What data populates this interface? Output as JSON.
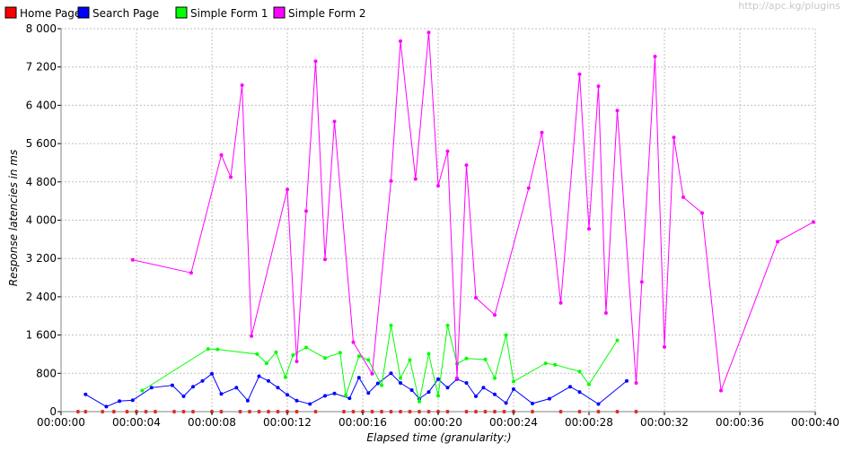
{
  "watermark": "http://apc.kg/plugins",
  "chart_data": {
    "type": "line",
    "title": "",
    "xlabel": "Elapsed time (granularity:)",
    "ylabel": "Response latencies in ms",
    "xlim": [
      0,
      40
    ],
    "ylim": [
      0,
      8000
    ],
    "x_ticks": [
      "00:00:00",
      "00:00:04",
      "00:00:08",
      "00:00:12",
      "00:00:16",
      "00:00:20",
      "00:00:24",
      "00:00:28",
      "00:00:32",
      "00:00:36",
      "00:00:40"
    ],
    "y_ticks": [
      "0",
      "800",
      "1 600",
      "2 400",
      "3 200",
      "4 000",
      "4 800",
      "5 600",
      "6 400",
      "7 200",
      "8 000"
    ],
    "grid": true,
    "legend_position": "top-left",
    "series": [
      {
        "name": "Home Page",
        "color": "#ff0000",
        "points": [
          [
            0.9,
            0
          ],
          [
            1.3,
            0
          ],
          [
            2.2,
            0
          ],
          [
            2.8,
            0
          ],
          [
            3.5,
            0
          ],
          [
            4.0,
            0
          ],
          [
            4.5,
            0
          ],
          [
            5.0,
            0
          ],
          [
            6.0,
            0
          ],
          [
            6.5,
            0
          ],
          [
            7.0,
            0
          ],
          [
            8.0,
            0
          ],
          [
            8.5,
            0
          ],
          [
            9.5,
            0
          ],
          [
            10.0,
            0
          ],
          [
            10.5,
            0
          ],
          [
            11.0,
            0
          ],
          [
            11.5,
            0
          ],
          [
            12.0,
            0
          ],
          [
            12.5,
            0
          ],
          [
            13.5,
            0
          ],
          [
            15.0,
            0
          ],
          [
            15.5,
            0
          ],
          [
            16.0,
            0
          ],
          [
            16.5,
            0
          ],
          [
            17.0,
            0
          ],
          [
            17.5,
            0
          ],
          [
            18.0,
            0
          ],
          [
            18.5,
            0
          ],
          [
            19.0,
            0
          ],
          [
            19.5,
            0
          ],
          [
            20.0,
            0
          ],
          [
            20.5,
            0
          ],
          [
            21.5,
            0
          ],
          [
            22.0,
            0
          ],
          [
            22.5,
            0
          ],
          [
            23.0,
            0
          ],
          [
            23.5,
            0
          ],
          [
            24.0,
            0
          ],
          [
            25.0,
            0
          ],
          [
            26.5,
            0
          ],
          [
            27.5,
            0
          ],
          [
            28.5,
            0
          ],
          [
            29.5,
            0
          ],
          [
            30.5,
            0
          ]
        ]
      },
      {
        "name": "Search Page",
        "color": "#0000ff",
        "points": [
          [
            1.3,
            360
          ],
          [
            2.4,
            105
          ],
          [
            3.1,
            220
          ],
          [
            3.8,
            240
          ],
          [
            4.8,
            500
          ],
          [
            5.9,
            550
          ],
          [
            6.5,
            320
          ],
          [
            7.0,
            520
          ],
          [
            7.5,
            640
          ],
          [
            8.0,
            790
          ],
          [
            8.5,
            370
          ],
          [
            9.3,
            500
          ],
          [
            9.9,
            230
          ],
          [
            10.5,
            740
          ],
          [
            11.0,
            640
          ],
          [
            11.5,
            500
          ],
          [
            12.0,
            350
          ],
          [
            12.5,
            230
          ],
          [
            13.2,
            160
          ],
          [
            14.0,
            330
          ],
          [
            14.5,
            380
          ],
          [
            15.3,
            280
          ],
          [
            15.8,
            710
          ],
          [
            16.3,
            390
          ],
          [
            16.8,
            590
          ],
          [
            17.5,
            800
          ],
          [
            18.0,
            600
          ],
          [
            18.6,
            450
          ],
          [
            19.0,
            270
          ],
          [
            19.5,
            410
          ],
          [
            20.0,
            680
          ],
          [
            20.5,
            500
          ],
          [
            21.0,
            680
          ],
          [
            21.5,
            600
          ],
          [
            22.0,
            320
          ],
          [
            22.4,
            500
          ],
          [
            23.0,
            360
          ],
          [
            23.6,
            180
          ],
          [
            24.0,
            470
          ],
          [
            25.0,
            170
          ],
          [
            25.9,
            270
          ],
          [
            27.0,
            520
          ],
          [
            27.5,
            410
          ],
          [
            28.5,
            160
          ],
          [
            30.0,
            640
          ]
        ]
      },
      {
        "name": "Simple Form 1",
        "color": "#00ff00",
        "points": [
          [
            4.3,
            440
          ],
          [
            7.8,
            1310
          ],
          [
            8.3,
            1300
          ],
          [
            10.4,
            1200
          ],
          [
            10.9,
            1010
          ],
          [
            11.4,
            1240
          ],
          [
            11.9,
            720
          ],
          [
            12.3,
            1180
          ],
          [
            13.0,
            1340
          ],
          [
            14.0,
            1120
          ],
          [
            14.8,
            1230
          ],
          [
            15.1,
            340
          ],
          [
            15.8,
            1160
          ],
          [
            16.3,
            1080
          ],
          [
            17.0,
            550
          ],
          [
            17.5,
            1800
          ],
          [
            18.0,
            700
          ],
          [
            18.5,
            1080
          ],
          [
            19.0,
            210
          ],
          [
            19.5,
            1210
          ],
          [
            20.0,
            330
          ],
          [
            20.5,
            1800
          ],
          [
            21.0,
            1000
          ],
          [
            21.5,
            1110
          ],
          [
            22.5,
            1090
          ],
          [
            23.0,
            700
          ],
          [
            23.6,
            1600
          ],
          [
            24.0,
            630
          ],
          [
            25.7,
            1010
          ],
          [
            26.2,
            980
          ],
          [
            27.5,
            840
          ],
          [
            28.0,
            570
          ],
          [
            29.5,
            1490
          ]
        ]
      },
      {
        "name": "Simple Form 2",
        "color": "#ff00ff",
        "points": [
          [
            3.8,
            3170
          ],
          [
            6.9,
            2900
          ],
          [
            8.5,
            5360
          ],
          [
            9.0,
            4900
          ],
          [
            9.6,
            6820
          ],
          [
            10.1,
            1580
          ],
          [
            12.0,
            4640
          ],
          [
            12.5,
            1050
          ],
          [
            13.0,
            4190
          ],
          [
            13.5,
            7320
          ],
          [
            14.0,
            3180
          ],
          [
            14.5,
            6060
          ],
          [
            15.5,
            1450
          ],
          [
            16.5,
            790
          ],
          [
            17.5,
            4820
          ],
          [
            18.0,
            7740
          ],
          [
            18.8,
            4860
          ],
          [
            19.5,
            7920
          ],
          [
            20.0,
            4720
          ],
          [
            20.5,
            5440
          ],
          [
            21.0,
            700
          ],
          [
            21.5,
            5150
          ],
          [
            22.0,
            2380
          ],
          [
            23.0,
            2020
          ],
          [
            24.8,
            4670
          ],
          [
            25.5,
            5830
          ],
          [
            26.5,
            2270
          ],
          [
            27.5,
            7050
          ],
          [
            28.0,
            3820
          ],
          [
            28.5,
            6800
          ],
          [
            28.9,
            2060
          ],
          [
            29.5,
            6290
          ],
          [
            30.5,
            600
          ],
          [
            30.8,
            2710
          ],
          [
            31.5,
            7420
          ],
          [
            32.0,
            1350
          ],
          [
            32.5,
            5730
          ],
          [
            33.0,
            4480
          ],
          [
            34.0,
            4150
          ],
          [
            35.0,
            440
          ],
          [
            38.0,
            3550
          ],
          [
            39.9,
            3960
          ]
        ]
      }
    ]
  }
}
